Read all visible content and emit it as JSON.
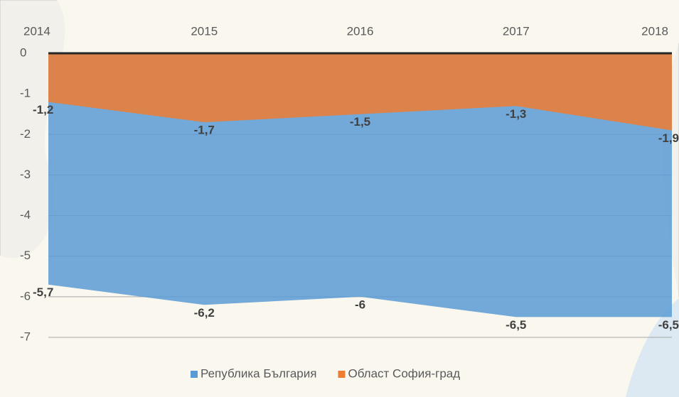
{
  "chart_data": {
    "type": "area",
    "categories": [
      "2014",
      "2015",
      "2016",
      "2017",
      "2018"
    ],
    "series": [
      {
        "name": "Република България",
        "color": "#5b9bd5",
        "values": [
          -5.7,
          -6.2,
          -6,
          -6.5,
          -6.5
        ],
        "value_labels": [
          "-5,7",
          "-6,2",
          "-6",
          "-6,5",
          "-6,5"
        ]
      },
      {
        "name": "Област София-град",
        "color": "#ed7d31",
        "values": [
          -1.2,
          -1.7,
          -1.5,
          -1.3,
          -1.9
        ],
        "value_labels": [
          "-1,2",
          "-1,7",
          "-1,5",
          "-1,3",
          "-1,9"
        ]
      }
    ],
    "ylim": [
      -7,
      0
    ],
    "yticks": [
      0,
      -1,
      -2,
      -3,
      -4,
      -5,
      -6,
      -7
    ],
    "grid": true,
    "legend": "bottom"
  }
}
